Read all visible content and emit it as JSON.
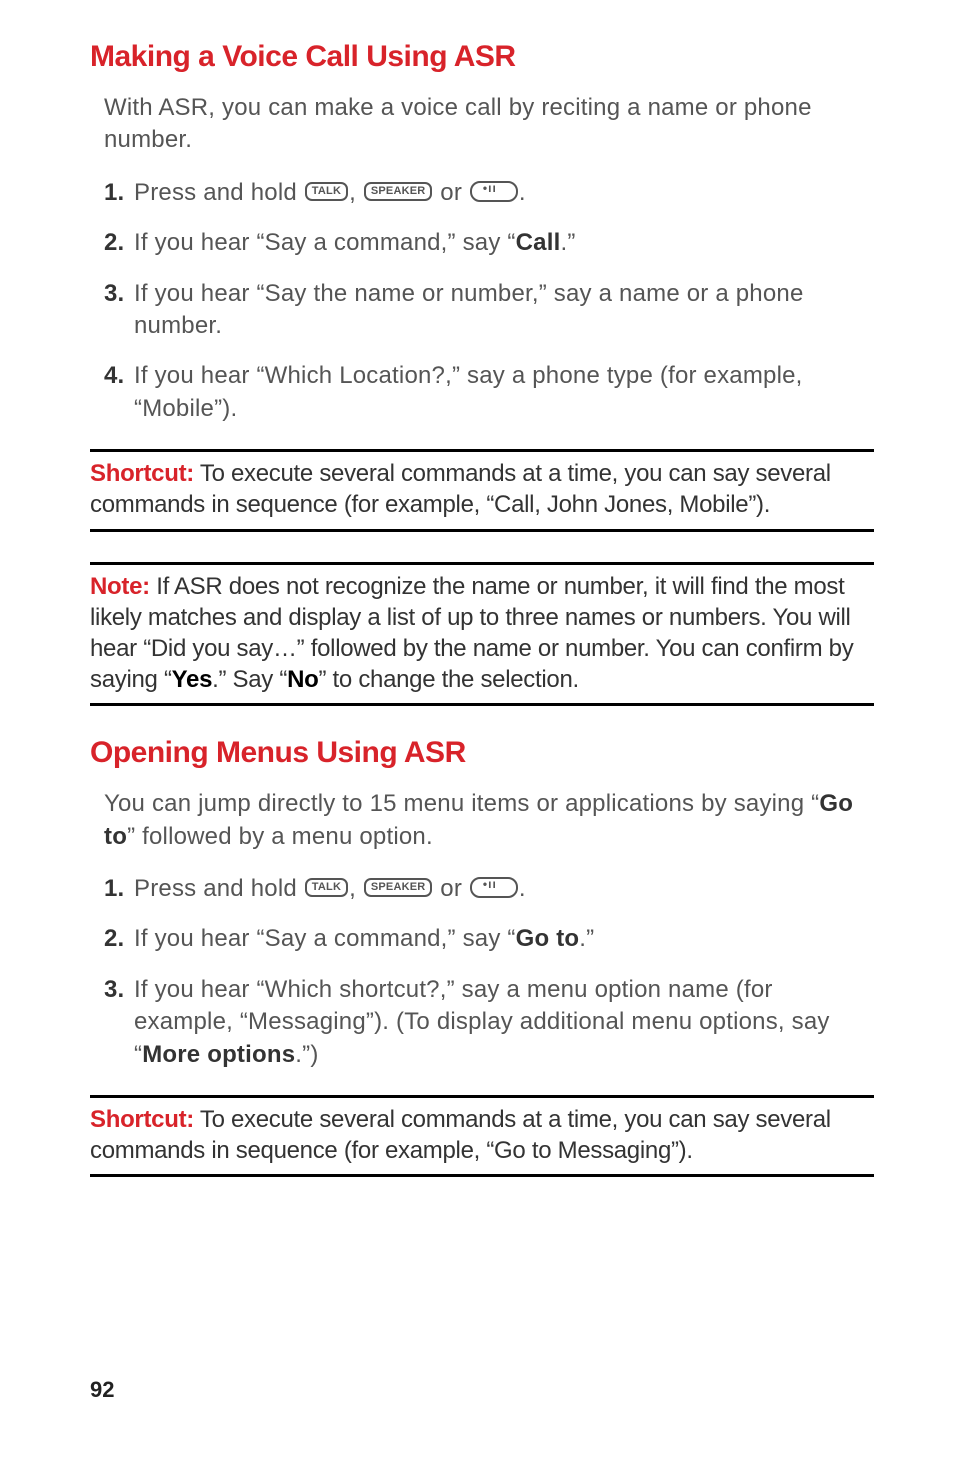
{
  "section1": {
    "heading": "Making a Voice Call Using ASR",
    "intro": "With ASR, you can make a voice call by reciting a name or phone number.",
    "steps": [
      {
        "num": "1.",
        "pre": "Press and hold ",
        "key1": "TALK",
        "mid1": ", ",
        "key2": "SPEAKER",
        "mid2": " or ",
        "post": "."
      },
      {
        "num": "2.",
        "text_a": "If you hear “Say a command,” say “",
        "bold": "Call",
        "text_b": ".”"
      },
      {
        "num": "3.",
        "text": "If you hear “Say the name or number,” say a name or a phone number."
      },
      {
        "num": "4.",
        "text": "If you hear “Which Location?,” say a phone type (for example, “Mobile”)."
      }
    ],
    "shortcut": {
      "label": "Shortcut:",
      "text": " To execute several commands at a time, you can say several commands in sequence (for example, “Call, John Jones, Mobile”)."
    },
    "note": {
      "label": "Note:",
      "text_a": " If ASR does not recognize the name or number, it will find the most likely matches and display a list of up to three names or numbers. You will hear “Did you say…” followed by the name or number. You can confirm by saying “",
      "bold1": "Yes",
      "text_b": ".” Say “",
      "bold2": "No",
      "text_c": "” to change the selection."
    }
  },
  "section2": {
    "heading": "Opening Menus Using ASR",
    "intro_a": "You can jump directly to 15 menu items or applications by saying “",
    "intro_bold": "Go to",
    "intro_b": "” followed by a menu option.",
    "steps": [
      {
        "num": "1.",
        "pre": "Press and hold ",
        "key1": "TALK",
        "mid1": ", ",
        "key2": "SPEAKER",
        "mid2": " or ",
        "post": "."
      },
      {
        "num": "2.",
        "text_a": "If you hear “Say a command,” say “",
        "bold": "Go to",
        "text_b": ".”"
      },
      {
        "num": "3.",
        "text_a": "If you hear “Which shortcut?,” say a menu option name (for example, “Messaging”). (To display additional menu options, say “",
        "bold": "More options",
        "text_b": ".”)"
      }
    ],
    "shortcut": {
      "label": "Shortcut:",
      "text": " To execute several commands at a time, you can say several commands in sequence (for example, “Go to Messaging”)."
    }
  },
  "page_number": "92"
}
